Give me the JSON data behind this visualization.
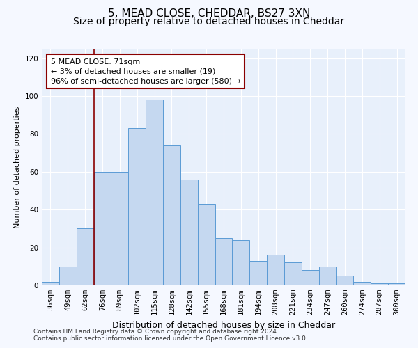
{
  "title1": "5, MEAD CLOSE, CHEDDAR, BS27 3XN",
  "title2": "Size of property relative to detached houses in Cheddar",
  "xlabel": "Distribution of detached houses by size in Cheddar",
  "ylabel": "Number of detached properties",
  "categories": [
    "36sqm",
    "49sqm",
    "62sqm",
    "76sqm",
    "89sqm",
    "102sqm",
    "115sqm",
    "128sqm",
    "142sqm",
    "155sqm",
    "168sqm",
    "181sqm",
    "194sqm",
    "208sqm",
    "221sqm",
    "234sqm",
    "247sqm",
    "260sqm",
    "274sqm",
    "287sqm",
    "300sqm"
  ],
  "values": [
    2,
    10,
    30,
    60,
    60,
    83,
    98,
    74,
    56,
    43,
    25,
    24,
    13,
    16,
    12,
    8,
    10,
    5,
    2,
    1,
    1
  ],
  "bar_color": "#c5d8f0",
  "bar_edge_color": "#5b9bd5",
  "vline_index": 3,
  "vline_color": "#8b0000",
  "annotation_text": "5 MEAD CLOSE: 71sqm\n← 3% of detached houses are smaller (19)\n96% of semi-detached houses are larger (580) →",
  "annotation_box_color": "#ffffff",
  "annotation_box_edge_color": "#8b0000",
  "ylim": [
    0,
    125
  ],
  "yticks": [
    0,
    20,
    40,
    60,
    80,
    100,
    120
  ],
  "footer1": "Contains HM Land Registry data © Crown copyright and database right 2024.",
  "footer2": "Contains public sector information licensed under the Open Government Licence v3.0.",
  "bg_color": "#e8f0fb",
  "fig_bg_color": "#f5f8ff",
  "title1_fontsize": 11,
  "title2_fontsize": 10,
  "xlabel_fontsize": 9,
  "ylabel_fontsize": 8,
  "tick_fontsize": 7.5,
  "annot_fontsize": 8,
  "footer_fontsize": 6.5
}
